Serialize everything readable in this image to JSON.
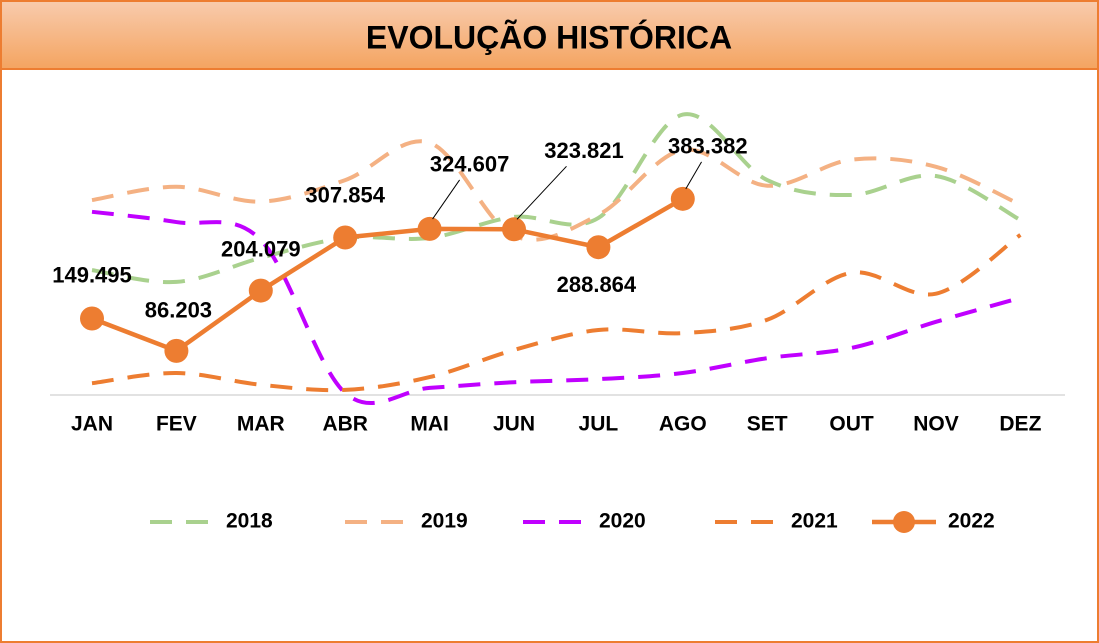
{
  "chart_data": {
    "type": "line",
    "title": "EVOLUÇÃO HISTÓRICA",
    "categories": [
      "JAN",
      "FEV",
      "MAR",
      "ABR",
      "MAI",
      "JUN",
      "JUL",
      "AGO",
      "SET",
      "OUT",
      "NOV",
      "DEZ"
    ],
    "ylim": [
      0,
      600000
    ],
    "grid": false,
    "legend": "bottom",
    "series": [
      {
        "name": "2018",
        "color": "#a9d18e",
        "style": "dashed",
        "values": [
          244000,
          221000,
          268000,
          307000,
          307000,
          348000,
          346000,
          548000,
          420000,
          391000,
          428000,
          342000
        ]
      },
      {
        "name": "2019",
        "color": "#f4b183",
        "style": "dashed",
        "values": [
          381000,
          407000,
          378000,
          420000,
          493000,
          311000,
          352000,
          479000,
          409000,
          460000,
          446000,
          372000
        ]
      },
      {
        "name": "2020",
        "color": "#c000ff",
        "style": "dashed",
        "values": [
          358000,
          338000,
          303000,
          4000,
          14000,
          25000,
          31000,
          43000,
          72000,
          92000,
          143000,
          190000
        ]
      },
      {
        "name": "2021",
        "color": "#ed7d31",
        "style": "dashed",
        "values": [
          23000,
          43000,
          20000,
          10000,
          35000,
          88000,
          127000,
          121000,
          147000,
          239000,
          198000,
          313000
        ]
      },
      {
        "name": "2022",
        "color": "#ed7d31",
        "style": "solid-markers",
        "values": [
          149495,
          86203,
          204079,
          307854,
          324607,
          323821,
          288864,
          383382,
          null,
          null,
          null,
          null
        ],
        "value_labels": [
          "149.495",
          "86.203",
          "204.079",
          "307.854",
          "324.607",
          "323.821",
          "288.864",
          "383.382",
          null,
          null,
          null,
          null
        ]
      }
    ]
  }
}
